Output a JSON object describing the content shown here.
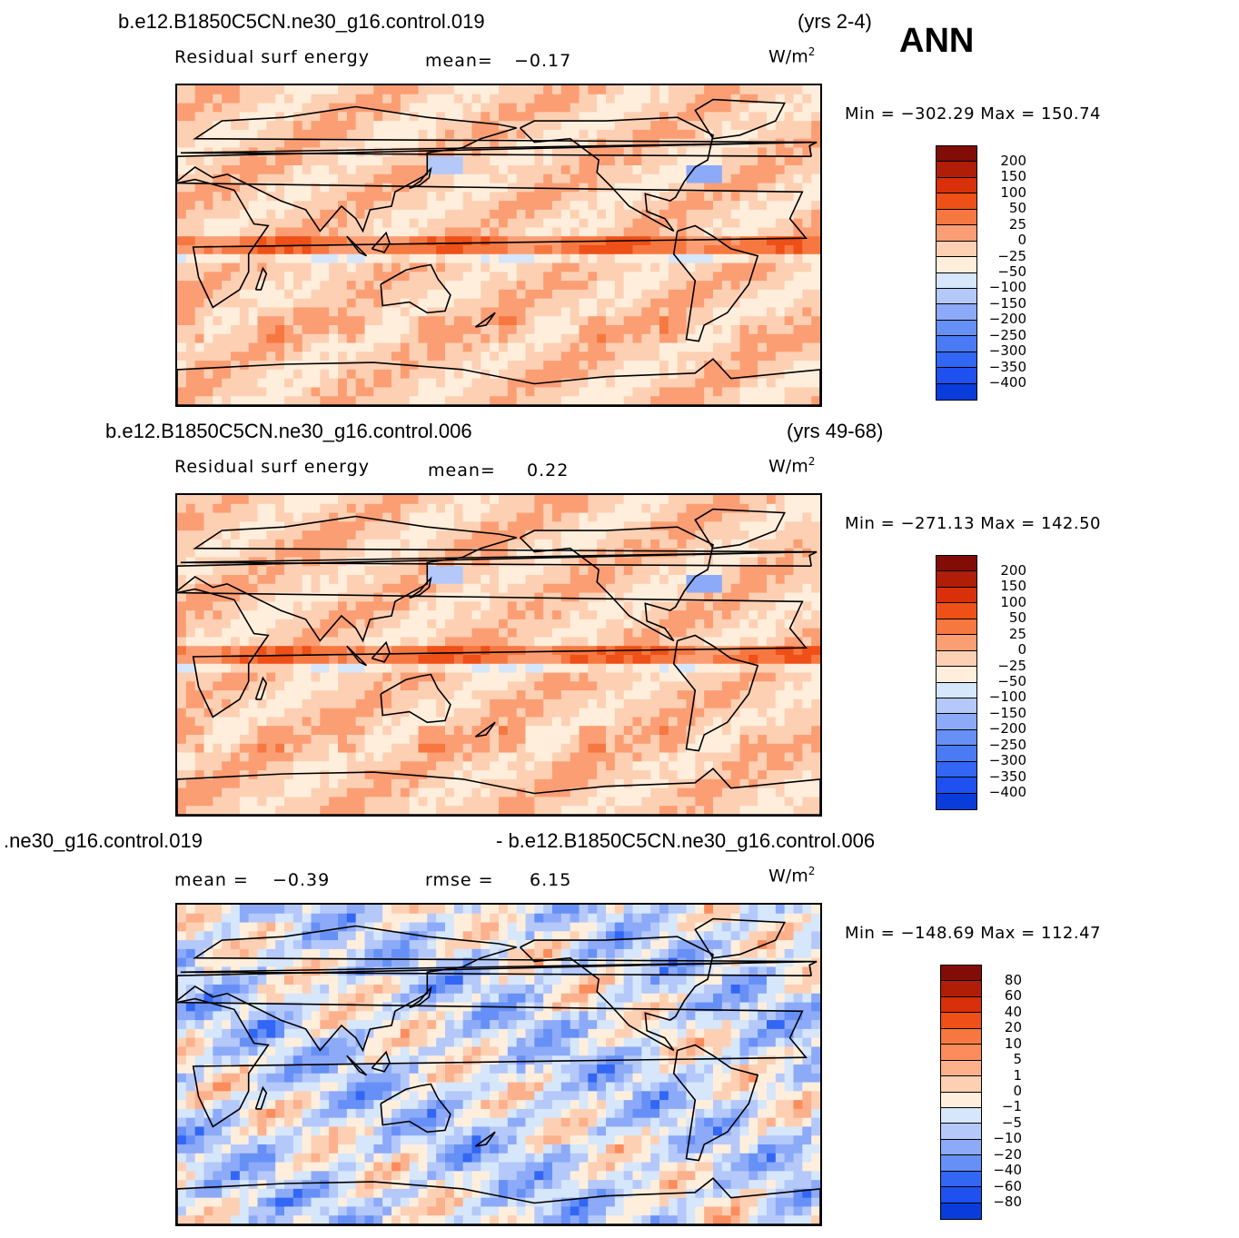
{
  "season": "ANN",
  "palettes": {
    "abs": [
      "#000a8c",
      "#0020b4",
      "#0a3cdc",
      "#1f50f0",
      "#3266f4",
      "#4a7af5",
      "#6690f6",
      "#8caaf8",
      "#b4c8fa",
      "#d6e6fb",
      "#ffeedc",
      "#fdd0b4",
      "#fc9e74",
      "#f67840",
      "#ee5018",
      "#d8300a",
      "#b01e08",
      "#820c06"
    ],
    "diff": [
      "#000a8c",
      "#0020b4",
      "#0a3cdc",
      "#1f50f0",
      "#3266f4",
      "#6690f6",
      "#8caaf8",
      "#b4c8fa",
      "#d6e6fb",
      "#ffeedc",
      "#fdd0b4",
      "#fcb08c",
      "#fc8c5c",
      "#f67840",
      "#ee5018",
      "#d8300a",
      "#b01e08",
      "#820c06"
    ]
  },
  "panels": [
    {
      "case_left": "b.e12.B1850C5CN.ne30_g16.control.019",
      "case_right": "(yrs 2-4)",
      "variable": "Residual  surf  energy",
      "stat1_label": "mean=",
      "stat1_value": "−0.17",
      "stat2_label": "",
      "stat2_value": "",
      "units": "W/m",
      "units_sup": "2",
      "minmax": "Min  =  −302.29  Max  =  150.74",
      "palette": "abs",
      "levels": [
        "200",
        "150",
        "100",
        "50",
        "25",
        "0",
        "−25",
        "−50",
        "−100",
        "−150",
        "−200",
        "−250",
        "−300",
        "−350",
        "−400"
      ]
    },
    {
      "case_left": "b.e12.B1850C5CN.ne30_g16.control.006",
      "case_right": "(yrs 49-68)",
      "variable": "Residual  surf  energy",
      "stat1_label": "mean=",
      "stat1_value": "0.22",
      "stat2_label": "",
      "stat2_value": "",
      "units": "W/m",
      "units_sup": "2",
      "minmax": "Min  =  −271.13  Max  =  142.50",
      "palette": "abs",
      "levels": [
        "200",
        "150",
        "100",
        "50",
        "25",
        "0",
        "−25",
        "−50",
        "−100",
        "−150",
        "−200",
        "−250",
        "−300",
        "−350",
        "−400"
      ]
    },
    {
      "case_left": ".ne30_g16.control.019",
      "case_right": "- b.e12.B1850C5CN.ne30_g16.control.006",
      "variable": "",
      "stat1_label": "mean  =",
      "stat1_value": "−0.39",
      "stat2_label": "rmse  =",
      "stat2_value": "6.15",
      "units": "W/m",
      "units_sup": "2",
      "minmax": "Min  =  −148.69  Max  =  112.47",
      "palette": "diff",
      "levels": [
        "80",
        "60",
        "40",
        "20",
        "10",
        "5",
        "1",
        "0",
        "−1",
        "−5",
        "−10",
        "−20",
        "−40",
        "−60",
        "−80"
      ]
    }
  ],
  "chart_data": [
    {
      "type": "heatmap",
      "title": "Residual surf energy",
      "case": "b.e12.B1850C5CN.ne30_g16.control.019",
      "period": "yrs 2-4",
      "units": "W/m2",
      "mean": -0.17,
      "min": -302.29,
      "max": 150.74,
      "contour_levels": [
        -400,
        -350,
        -300,
        -250,
        -200,
        -150,
        -100,
        -50,
        -25,
        0,
        25,
        50,
        100,
        150,
        200
      ]
    },
    {
      "type": "heatmap",
      "title": "Residual surf energy",
      "case": "b.e12.B1850C5CN.ne30_g16.control.006",
      "period": "yrs 49-68",
      "units": "W/m2",
      "mean": 0.22,
      "min": -271.13,
      "max": 142.5,
      "contour_levels": [
        -400,
        -350,
        -300,
        -250,
        -200,
        -150,
        -100,
        -50,
        -25,
        0,
        25,
        50,
        100,
        150,
        200
      ]
    },
    {
      "type": "heatmap",
      "title": "control.019 - control.006",
      "units": "W/m2",
      "mean": -0.39,
      "rmse": 6.15,
      "min": -148.69,
      "max": 112.47,
      "contour_levels": [
        -80,
        -60,
        -40,
        -20,
        -10,
        -5,
        -1,
        0,
        1,
        5,
        10,
        20,
        40,
        60,
        80
      ]
    }
  ]
}
